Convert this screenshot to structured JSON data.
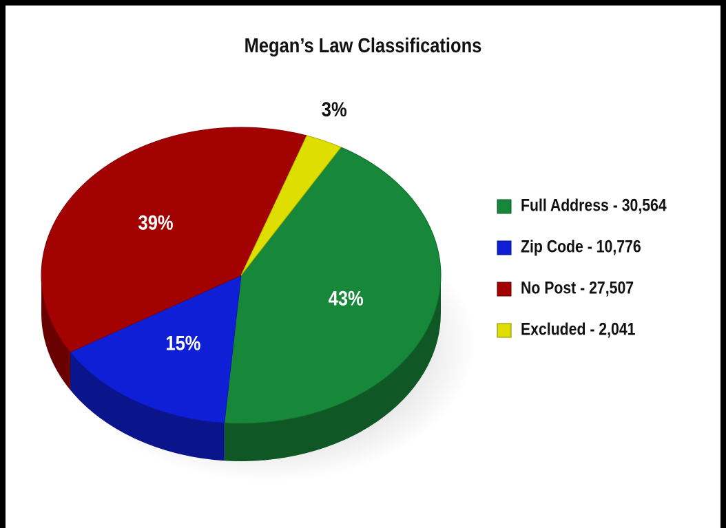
{
  "chart_data": {
    "type": "pie",
    "title": "Megan’s Law Classifications",
    "categories": [
      "Full Address - 30,564",
      "Zip Code - 10,776",
      "No Post - 27,507",
      "Excluded - 2,041"
    ],
    "values": [
      43,
      15,
      39,
      3
    ],
    "value_labels": [
      "43%",
      "15%",
      "39%",
      "3%"
    ],
    "colors": [
      "#17873a",
      "#0f1fd6",
      "#a30202",
      "#dede00"
    ],
    "legend": "right"
  }
}
